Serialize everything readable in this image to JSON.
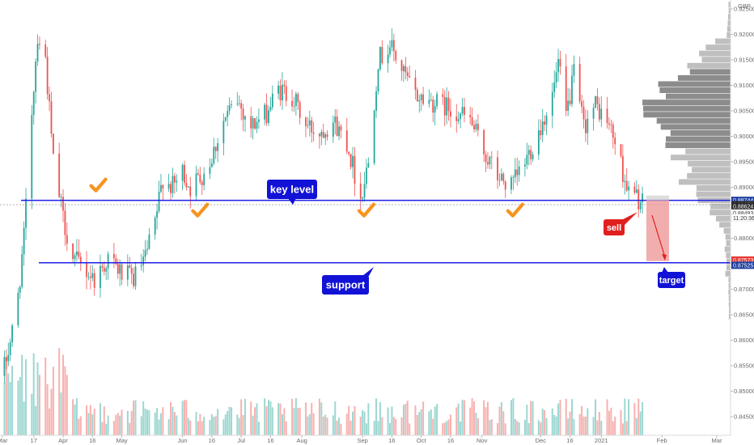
{
  "chart_data": {
    "type": "candlestick",
    "currency": "GBP",
    "y_axis": {
      "min": 0.8415,
      "max": 0.9265,
      "ticks": [
        "0.92500",
        "0.92000",
        "0.91500",
        "0.91000",
        "0.90500",
        "0.90000",
        "0.89500",
        "0.89000",
        "0.88500",
        "0.88000",
        "0.87500",
        "0.87000",
        "0.86500",
        "0.86000",
        "0.85500",
        "0.85000",
        "0.84500"
      ]
    },
    "x_axis": {
      "start": "2020-03-01",
      "end": "2021-03-01",
      "ticks": [
        {
          "label": "Mar",
          "date": "2020-03-01"
        },
        {
          "label": "17",
          "date": "2020-03-17"
        },
        {
          "label": "Apr",
          "date": "2020-04-01"
        },
        {
          "label": "16",
          "date": "2020-04-16"
        },
        {
          "label": "May",
          "date": "2020-05-01"
        },
        {
          "label": "Jun",
          "date": "2020-06-01"
        },
        {
          "label": "16",
          "date": "2020-06-16"
        },
        {
          "label": "Jul",
          "date": "2020-07-01"
        },
        {
          "label": "16",
          "date": "2020-07-16"
        },
        {
          "label": "Aug",
          "date": "2020-08-01"
        },
        {
          "label": "Sep",
          "date": "2020-09-01"
        },
        {
          "label": "16",
          "date": "2020-09-16"
        },
        {
          "label": "Oct",
          "date": "2020-10-01"
        },
        {
          "label": "16",
          "date": "2020-10-16"
        },
        {
          "label": "Nov",
          "date": "2020-11-01"
        },
        {
          "label": "Dec",
          "date": "2020-12-01"
        },
        {
          "label": "16",
          "date": "2020-12-16"
        },
        {
          "label": "2021",
          "date": "2021-01-01"
        },
        {
          "label": "Feb",
          "date": "2021-02-01"
        },
        {
          "label": "Mar",
          "date": "2021-03-01"
        }
      ]
    },
    "last_candle_date": "2021-01-22",
    "price_path": [
      {
        "date": "2020-03-01",
        "close": 0.853
      },
      {
        "date": "2020-03-08",
        "close": 0.865
      },
      {
        "date": "2020-03-12",
        "close": 0.88
      },
      {
        "date": "2020-03-16",
        "close": 0.905
      },
      {
        "date": "2020-03-19",
        "close": 0.92
      },
      {
        "date": "2020-03-23",
        "close": 0.915
      },
      {
        "date": "2020-03-27",
        "close": 0.895
      },
      {
        "date": "2020-04-01",
        "close": 0.884
      },
      {
        "date": "2020-04-06",
        "close": 0.876
      },
      {
        "date": "2020-04-12",
        "close": 0.874
      },
      {
        "date": "2020-04-17",
        "close": 0.872
      },
      {
        "date": "2020-04-24",
        "close": 0.876
      },
      {
        "date": "2020-05-01",
        "close": 0.873
      },
      {
        "date": "2020-05-07",
        "close": 0.872
      },
      {
        "date": "2020-05-13",
        "close": 0.876
      },
      {
        "date": "2020-05-18",
        "close": 0.883
      },
      {
        "date": "2020-05-22",
        "close": 0.892
      },
      {
        "date": "2020-05-27",
        "close": 0.89
      },
      {
        "date": "2020-06-01",
        "close": 0.893
      },
      {
        "date": "2020-06-05",
        "close": 0.89
      },
      {
        "date": "2020-06-10",
        "close": 0.892
      },
      {
        "date": "2020-06-15",
        "close": 0.895
      },
      {
        "date": "2020-06-22",
        "close": 0.903
      },
      {
        "date": "2020-06-29",
        "close": 0.907
      },
      {
        "date": "2020-07-06",
        "close": 0.902
      },
      {
        "date": "2020-07-13",
        "close": 0.904
      },
      {
        "date": "2020-07-20",
        "close": 0.909
      },
      {
        "date": "2020-07-27",
        "close": 0.908
      },
      {
        "date": "2020-08-03",
        "close": 0.902
      },
      {
        "date": "2020-08-10",
        "close": 0.901
      },
      {
        "date": "2020-08-17",
        "close": 0.903
      },
      {
        "date": "2020-08-24",
        "close": 0.899
      },
      {
        "date": "2020-08-31",
        "close": 0.888
      },
      {
        "date": "2020-09-04",
        "close": 0.895
      },
      {
        "date": "2020-09-09",
        "close": 0.915
      },
      {
        "date": "2020-09-15",
        "close": 0.918
      },
      {
        "date": "2020-09-21",
        "close": 0.913
      },
      {
        "date": "2020-09-28",
        "close": 0.908
      },
      {
        "date": "2020-10-05",
        "close": 0.907
      },
      {
        "date": "2020-10-12",
        "close": 0.906
      },
      {
        "date": "2020-10-19",
        "close": 0.905
      },
      {
        "date": "2020-10-26",
        "close": 0.903
      },
      {
        "date": "2020-11-02",
        "close": 0.897
      },
      {
        "date": "2020-11-09",
        "close": 0.892
      },
      {
        "date": "2020-11-16",
        "close": 0.89
      },
      {
        "date": "2020-11-23",
        "close": 0.895
      },
      {
        "date": "2020-11-30",
        "close": 0.901
      },
      {
        "date": "2020-12-07",
        "close": 0.908
      },
      {
        "date": "2020-12-10",
        "close": 0.914
      },
      {
        "date": "2020-12-14",
        "close": 0.904
      },
      {
        "date": "2020-12-18",
        "close": 0.912
      },
      {
        "date": "2020-12-23",
        "close": 0.902
      },
      {
        "date": "2020-12-29",
        "close": 0.906
      },
      {
        "date": "2021-01-04",
        "close": 0.903
      },
      {
        "date": "2021-01-08",
        "close": 0.899
      },
      {
        "date": "2021-01-12",
        "close": 0.893
      },
      {
        "date": "2021-01-15",
        "close": 0.889
      },
      {
        "date": "2021-01-19",
        "close": 0.888
      },
      {
        "date": "2021-01-22",
        "close": 0.8866
      }
    ],
    "horizontal_lines": [
      {
        "label": "key level",
        "price": 0.88744,
        "color": "#1e1ee6"
      },
      {
        "label": "support",
        "price": 0.8752,
        "color": "#1e1ee6"
      }
    ],
    "price_tags": [
      {
        "text": "0.88744",
        "bg": "#1e3fa0",
        "fg": "#ffffff",
        "price": 0.88744
      },
      {
        "text": "0.88659",
        "bg": "#2a2a2a",
        "fg": "#ffffff",
        "price": 0.88659
      },
      {
        "text": "0.88624",
        "bg": "#2a2a2a",
        "fg": "#ffffff",
        "price": 0.88624
      },
      {
        "text": "0.88493",
        "bg": "#ffffff",
        "fg": "#333333",
        "price": 0.88493
      },
      {
        "text": "11:20:36",
        "bg": "#ffffff",
        "fg": "#333333",
        "price": 0.884
      },
      {
        "text": "0.87573",
        "bg": "#e53935",
        "fg": "#ffffff",
        "price": 0.87573
      },
      {
        "text": "0.87525",
        "bg": "#1e3fa0",
        "fg": "#ffffff",
        "price": 0.8747
      }
    ],
    "annotations": {
      "key_level_label": "key level",
      "support_label": "support",
      "sell_label": "sell",
      "target_label": "target"
    },
    "checkmark_dates": [
      "2020-04-19",
      "2020-06-10",
      "2020-09-03",
      "2020-11-18"
    ],
    "colors": {
      "up": "#26a69a",
      "down": "#ef5350",
      "line": "#1e1ee6",
      "label_bg": "#1212d6",
      "sell_bg": "#e01f1f",
      "check": "#f7931e",
      "target_zone": "#ef9a9a",
      "volume_profile": "#9e9e9e"
    }
  }
}
